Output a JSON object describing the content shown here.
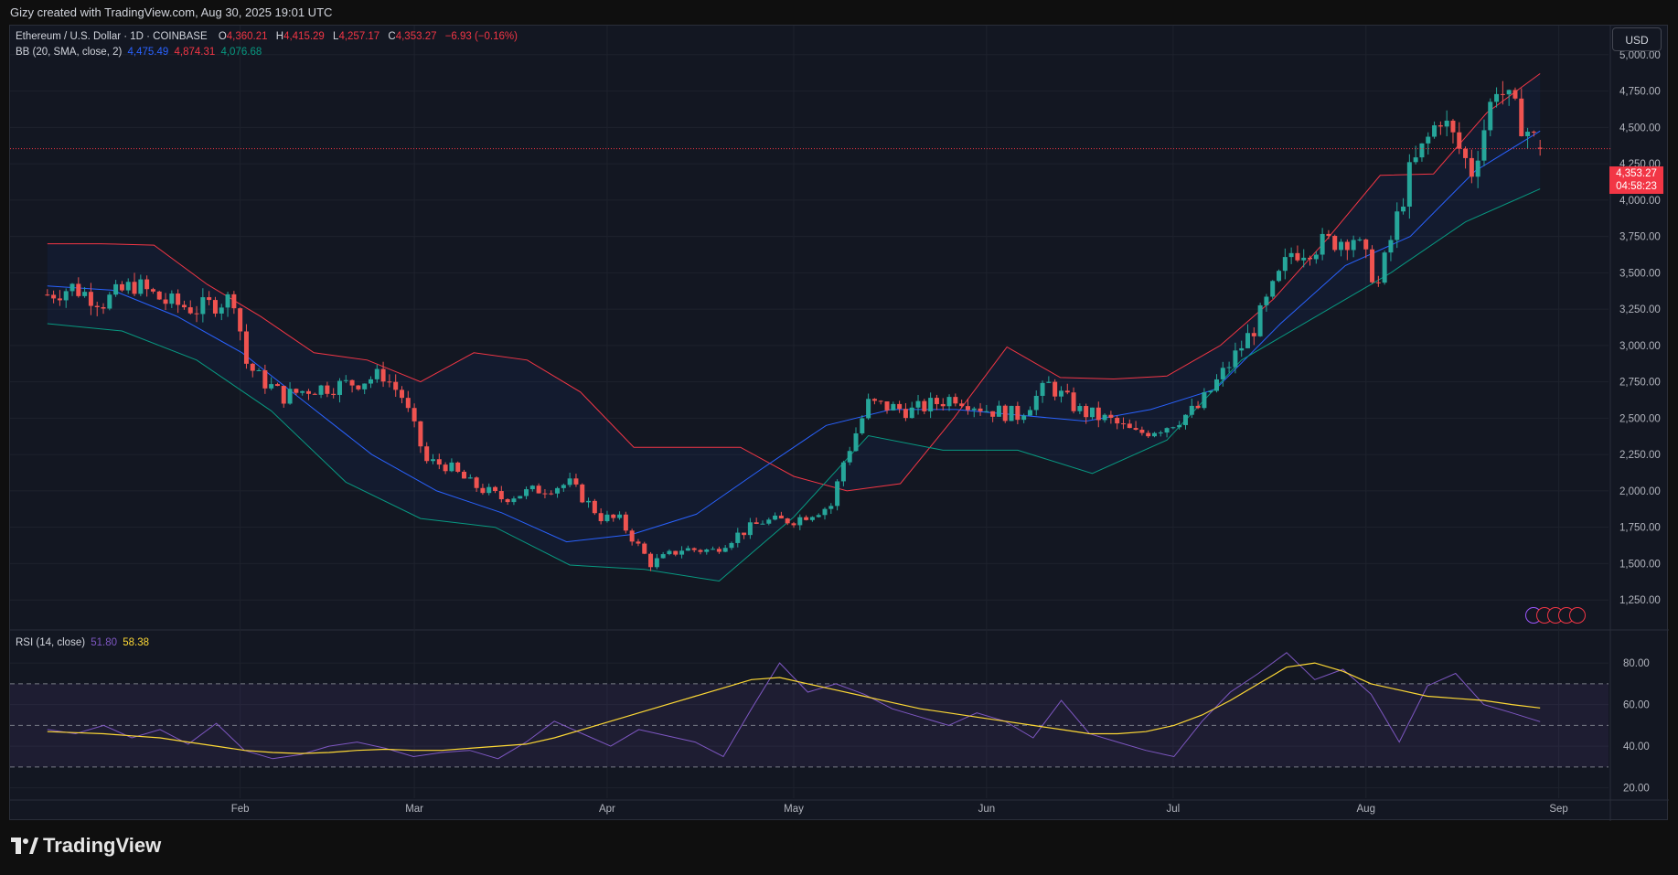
{
  "header": {
    "attribution": "Gizy created with TradingView.com, Aug 30, 2025 19:01 UTC"
  },
  "legend": {
    "symbol": "Ethereum / U.S. Dollar · 1D · COINBASE",
    "o_label": "O",
    "o_value": "4,360.21",
    "h_label": "H",
    "h_value": "4,415.29",
    "l_label": "L",
    "l_value": "4,257.17",
    "c_label": "C",
    "c_value": "4,353.27",
    "change": "−6.93 (−0.16%)",
    "bb_label": "BB (20, SMA, close, 2)",
    "bb_basis": "4,475.49",
    "bb_upper": "4,874.31",
    "bb_lower": "4,076.68",
    "rsi_label": "RSI (14, close)",
    "rsi_value": "51.80",
    "rsi_ma": "58.38"
  },
  "currency_button": "USD",
  "last_price": {
    "price": "4,353.27",
    "countdown": "04:58:23"
  },
  "footer": {
    "brand": "TradingView"
  },
  "colors": {
    "up": "#26a69a",
    "down": "#ef5350",
    "bb_upper": "#f23645",
    "bb_basis": "#2962ff",
    "bb_lower": "#089981",
    "rsi": "#7e57c2",
    "rsi_ma": "#fdd835"
  },
  "chart_data": [
    {
      "type": "candlestick",
      "title": "Ethereum / U.S. Dollar · 1D · COINBASE",
      "ylim": [
        1050,
        5200
      ],
      "y_ticks": [
        "5,000.00",
        "4,750.00",
        "4,500.00",
        "4,250.00",
        "4,000.00",
        "3,750.00",
        "3,500.00",
        "3,250.00",
        "3,000.00",
        "2,750.00",
        "2,500.00",
        "2,250.00",
        "2,000.00",
        "1,750.00",
        "1,500.00",
        "1,250.00"
      ],
      "x_ticks": [
        "Feb",
        "Mar",
        "Apr",
        "May",
        "Jun",
        "Jul",
        "Aug",
        "Sep"
      ],
      "closes_anchor_dates": [
        "2025-01-01",
        "2025-01-05",
        "2025-01-10",
        "2025-01-15",
        "2025-01-20",
        "2025-01-25",
        "2025-01-31",
        "2025-02-02",
        "2025-02-04",
        "2025-02-08",
        "2025-02-12",
        "2025-02-16",
        "2025-02-20",
        "2025-02-24",
        "2025-02-27",
        "2025-03-03",
        "2025-03-06",
        "2025-03-10",
        "2025-03-15",
        "2025-03-20",
        "2025-03-26",
        "2025-03-31",
        "2025-04-03",
        "2025-04-08",
        "2025-04-13",
        "2025-04-18",
        "2025-04-22",
        "2025-04-26",
        "2025-05-01",
        "2025-05-07",
        "2025-05-09",
        "2025-05-13",
        "2025-05-20",
        "2025-05-27",
        "2025-06-01",
        "2025-06-06",
        "2025-06-11",
        "2025-06-16",
        "2025-06-21",
        "2025-06-25",
        "2025-06-30",
        "2025-07-05",
        "2025-07-10",
        "2025-07-14",
        "2025-07-20",
        "2025-07-25",
        "2025-07-30",
        "2025-08-03",
        "2025-08-08",
        "2025-08-13",
        "2025-08-18",
        "2025-08-22",
        "2025-08-25",
        "2025-08-29"
      ],
      "closes": [
        3350,
        3400,
        3300,
        3420,
        3300,
        3250,
        3330,
        2880,
        2780,
        2650,
        2700,
        2720,
        2750,
        2800,
        2650,
        2200,
        2180,
        2050,
        1950,
        2000,
        2050,
        1820,
        1800,
        1500,
        1600,
        1590,
        1700,
        1790,
        1800,
        1900,
        2200,
        2600,
        2550,
        2650,
        2560,
        2520,
        2730,
        2550,
        2480,
        2390,
        2450,
        2570,
        2870,
        3120,
        3640,
        3700,
        3750,
        3420,
        4180,
        4580,
        4200,
        4800,
        4600,
        4353
      ],
      "bb_upper_anchor": [
        3700,
        3700,
        3690,
        3420,
        3200,
        2950,
        2900,
        2750,
        2950,
        2900,
        2680,
        2300,
        2300,
        2300,
        2100,
        2000,
        2050,
        2500,
        2990,
        2780,
        2770,
        2790,
        3000,
        3320,
        3730,
        4170,
        4180,
        4600,
        4870
      ],
      "bb_basis_anchor": [
        3410,
        3380,
        3200,
        2950,
        2600,
        2250,
        2000,
        1850,
        1650,
        1700,
        1840,
        2150,
        2450,
        2560,
        2560,
        2520,
        2480,
        2560,
        2700,
        3150,
        3550,
        3750,
        4200,
        4475
      ],
      "bb_lower_anchor": [
        3150,
        3100,
        2900,
        2550,
        2060,
        1810,
        1750,
        1490,
        1460,
        1380,
        1820,
        2380,
        2280,
        2280,
        2120,
        2350,
        2900,
        3200,
        3500,
        3850,
        4077
      ]
    },
    {
      "type": "line",
      "title": "RSI (14, close)",
      "ylim": [
        15,
        95
      ],
      "y_ticks": [
        "80.00",
        "60.00",
        "40.00",
        "20.00"
      ],
      "levels": [
        70,
        50,
        30
      ],
      "series": [
        {
          "name": "RSI",
          "values": [
            48,
            46,
            50,
            44,
            48,
            41,
            51,
            38,
            34,
            36,
            40,
            42,
            39,
            35,
            37,
            38,
            34,
            42,
            52,
            46,
            40,
            48,
            45,
            42,
            35,
            58,
            80,
            66,
            70,
            65,
            58,
            54,
            50,
            56,
            52,
            44,
            62,
            46,
            42,
            38,
            35,
            52,
            66,
            75,
            85,
            72,
            77,
            65,
            42,
            69,
            75,
            60,
            56,
            51.8
          ]
        },
        {
          "name": "RSI MA",
          "values": [
            47,
            46.5,
            46,
            45,
            44,
            42,
            40,
            38,
            37,
            36.5,
            37,
            38,
            38.5,
            38,
            38,
            39,
            40,
            41,
            44,
            48,
            52,
            56,
            60,
            64,
            68,
            72,
            73,
            70,
            67,
            64,
            61,
            58,
            56,
            54,
            52,
            50,
            48,
            46,
            46,
            47,
            50,
            55,
            62,
            70,
            78,
            80,
            76,
            70,
            67,
            64,
            63,
            62,
            60,
            58.38
          ]
        }
      ]
    }
  ]
}
